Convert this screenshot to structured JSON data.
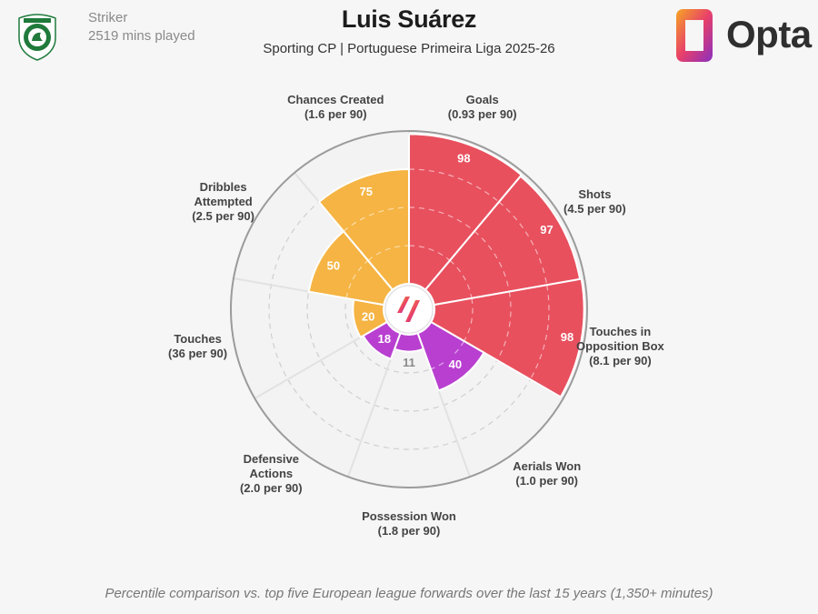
{
  "header": {
    "position": "Striker",
    "minutes": "2519 mins played",
    "player": "Luis Suárez",
    "subtitle": "Sporting CP | Portuguese Primeira Liga 2025-26",
    "brand": "Opta"
  },
  "footnote": "Percentile comparison vs. top five European league forwards over the last 15 years (1,350+ minutes)",
  "colors": {
    "attacking": "#e8505e",
    "possession": "#f5b443",
    "defending": "#b83fd0",
    "ring": "#9b9b9b",
    "grid": "#cfcfcf",
    "background": "#f6f6f6"
  },
  "chart_data": {
    "type": "radar",
    "scale": [
      0,
      100
    ],
    "metrics": [
      {
        "name": "Goals",
        "stat": "(0.93 per 90)",
        "percentile": 98,
        "group": "attacking"
      },
      {
        "name": "Shots",
        "stat": "(4.5 per 90)",
        "percentile": 97,
        "group": "attacking"
      },
      {
        "name": "Touches in Opposition Box",
        "stat": "(8.1 per 90)",
        "percentile": 98,
        "group": "attacking"
      },
      {
        "name": "Aerials Won",
        "stat": "(1.0 per 90)",
        "percentile": 40,
        "group": "defending"
      },
      {
        "name": "Possession Won",
        "stat": "(1.8 per 90)",
        "percentile": 11,
        "group": "defending"
      },
      {
        "name": "Defensive Actions",
        "stat": "(2.0 per 90)",
        "percentile": 18,
        "group": "defending"
      },
      {
        "name": "Touches",
        "stat": "(36 per 90)",
        "percentile": 20,
        "group": "possession"
      },
      {
        "name": "Dribbles Attempted",
        "stat": "(2.5 per 90)",
        "percentile": 50,
        "group": "possession"
      },
      {
        "name": "Chances Created",
        "stat": "(1.6 per 90)",
        "percentile": 75,
        "group": "possession"
      }
    ]
  }
}
